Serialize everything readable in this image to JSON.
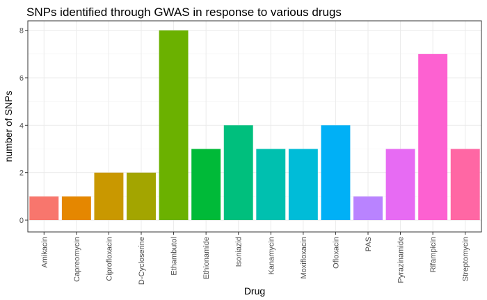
{
  "chart_data": {
    "type": "bar",
    "title": "SNPs identified through GWAS in response to various drugs",
    "xlabel": "Drug",
    "ylabel": "number of SNPs",
    "categories": [
      "Amikacin",
      "Capreomycin",
      "Ciprofloxacin",
      "D-Cycloserine",
      "Ethambutol",
      "Ethionamide",
      "Isoniazid",
      "Kanamycin",
      "Moxifloxacin",
      "Ofloxacin",
      "PAS",
      "Pyrazinamide",
      "Rifampicin",
      "Streptomycin"
    ],
    "values": [
      1,
      1,
      2,
      2,
      8,
      3,
      4,
      3,
      3,
      4,
      1,
      3,
      7,
      3
    ],
    "colors": [
      "#F8766D",
      "#E58700",
      "#C99800",
      "#A3A500",
      "#6BB100",
      "#00BA38",
      "#00BF7D",
      "#00C0AF",
      "#00BCD8",
      "#00B0F6",
      "#B983FF",
      "#E76BF3",
      "#FD61D1",
      "#FF67A4"
    ],
    "ylim": [
      0,
      8.4
    ],
    "yticks": [
      0,
      2,
      4,
      6,
      8
    ],
    "grid": true,
    "legend": "none"
  }
}
